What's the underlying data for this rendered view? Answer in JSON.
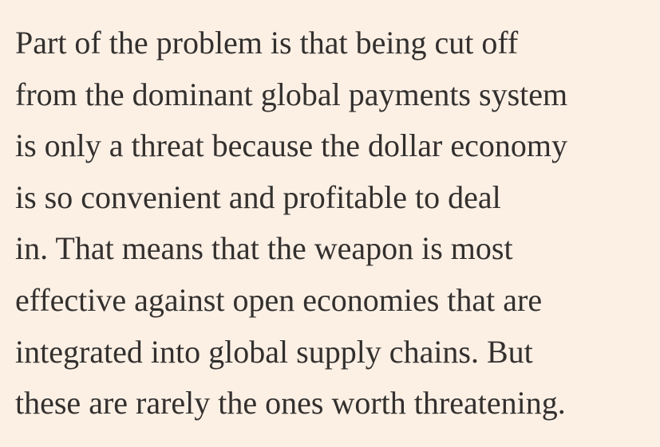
{
  "colors": {
    "background": "#FCF0E5",
    "text": "#33302E"
  },
  "paragraph": {
    "lines": [
      "Part of the problem is that being cut off",
      "from the dominant global payments system",
      "is only a threat because the dollar economy",
      "is so convenient and profitable to deal",
      "in. That means that the weapon is most",
      "effective against open economies that are",
      "integrated into global supply chains. But",
      "these are rarely the ones worth threatening."
    ]
  }
}
